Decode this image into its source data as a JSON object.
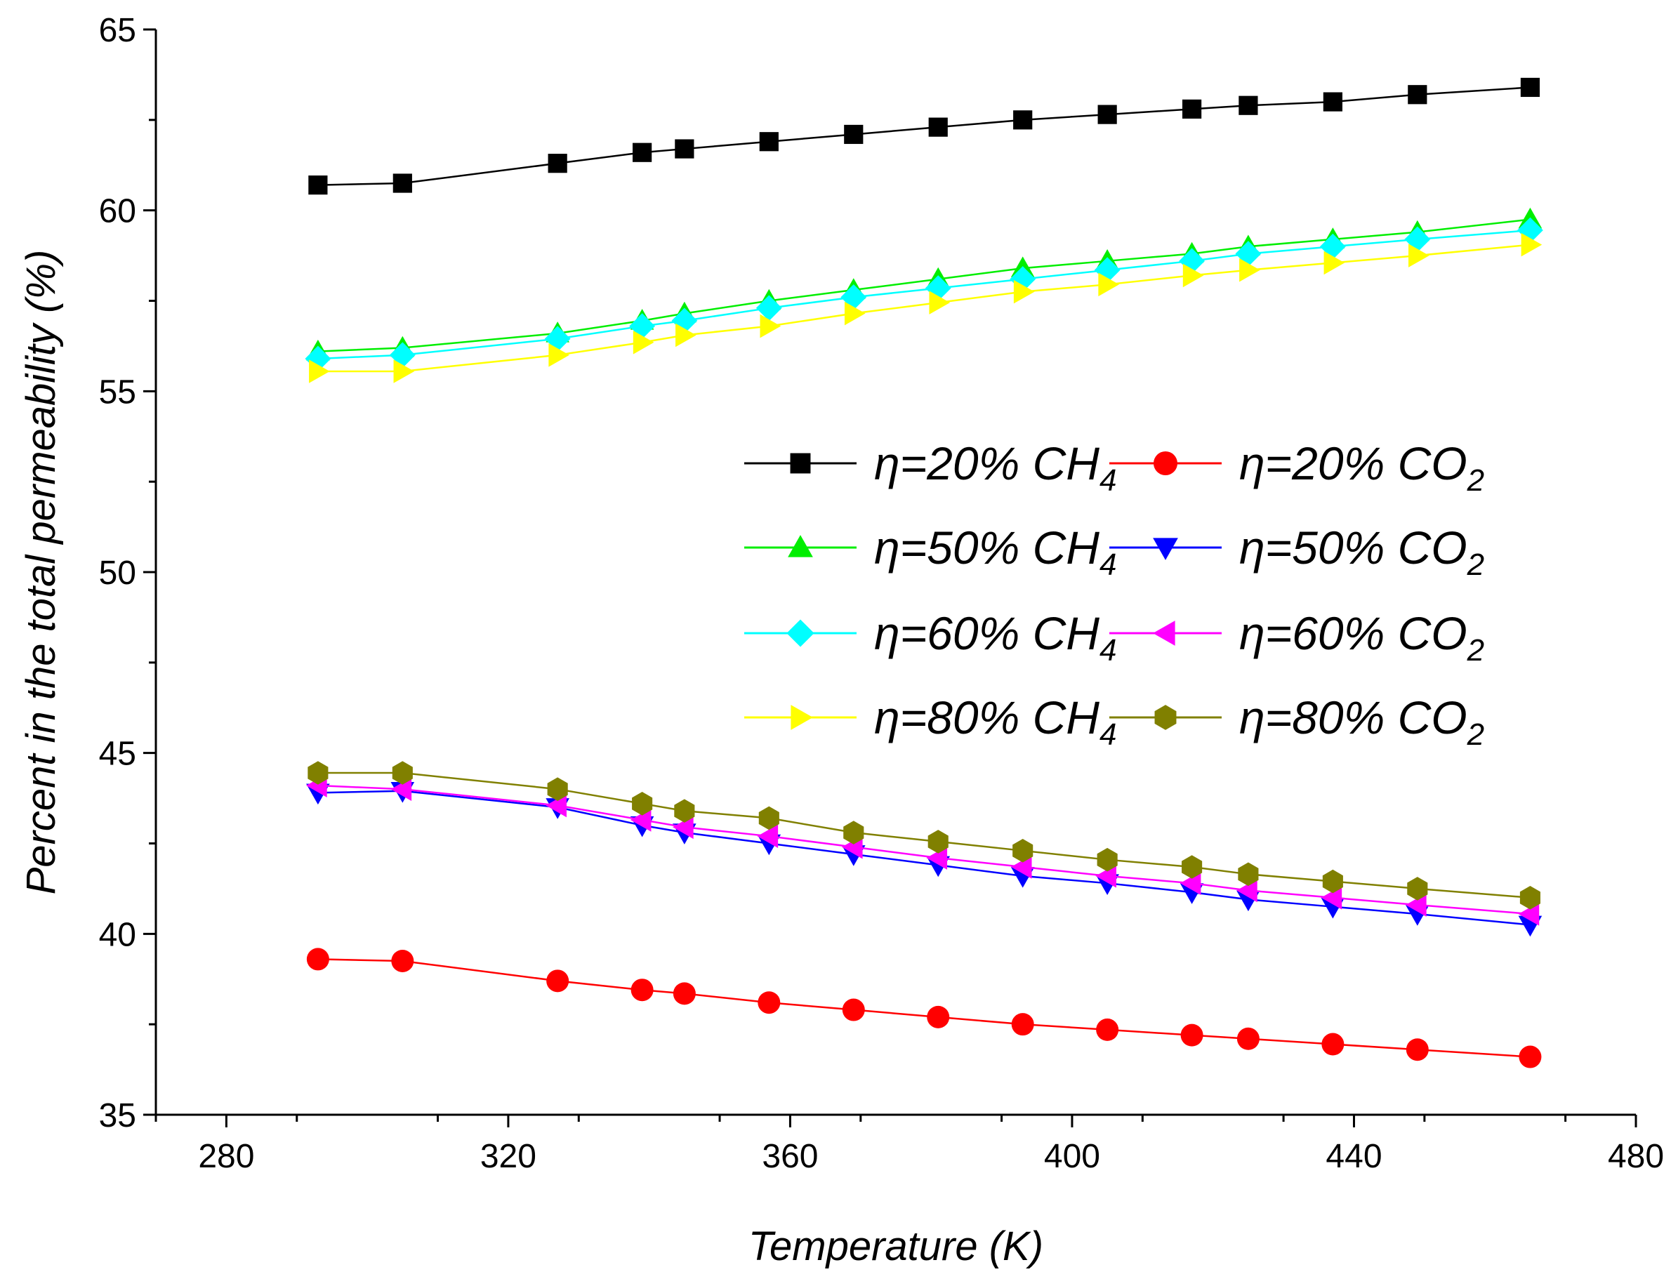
{
  "chart_data": {
    "type": "line",
    "title": "",
    "xlabel": "Temperature (K)",
    "ylabel": "Percent in the total permeability (%)",
    "xlim": [
      270,
      480
    ],
    "ylim": [
      35,
      65
    ],
    "xticks": [
      280,
      320,
      360,
      400,
      440,
      480
    ],
    "yticks": [
      35,
      40,
      45,
      50,
      55,
      60,
      65
    ],
    "xtick_labels": [
      "280",
      "320",
      "360",
      "400",
      "440",
      "480"
    ],
    "ytick_labels": [
      "35",
      "40",
      "45",
      "50",
      "55",
      "60",
      "65"
    ],
    "grid": false,
    "legend_position": "center-right",
    "x": [
      293,
      305,
      327,
      339,
      345,
      357,
      369,
      381,
      393,
      405,
      417,
      425,
      437,
      449,
      465
    ],
    "series": [
      {
        "name": "η=20% CH4",
        "label_main": "η=20% CH",
        "label_sub": "4",
        "color": "#000000",
        "marker": "square",
        "values": [
          60.7,
          60.75,
          61.3,
          61.6,
          61.7,
          61.9,
          62.1,
          62.3,
          62.5,
          62.65,
          62.8,
          62.9,
          63.0,
          63.2,
          63.4
        ]
      },
      {
        "name": "η=20% CO2",
        "label_main": "η=20% CO",
        "label_sub": "2",
        "color": "#ff0000",
        "marker": "circle",
        "values": [
          39.3,
          39.25,
          38.7,
          38.45,
          38.35,
          38.1,
          37.9,
          37.7,
          37.5,
          37.35,
          37.2,
          37.1,
          36.95,
          36.8,
          36.6
        ]
      },
      {
        "name": "η=50% CH4",
        "label_main": "η=50% CH",
        "label_sub": "4",
        "color": "#00ee00",
        "marker": "triangle-up",
        "values": [
          56.1,
          56.2,
          56.6,
          56.95,
          57.15,
          57.5,
          57.8,
          58.1,
          58.4,
          58.6,
          58.8,
          59.0,
          59.2,
          59.4,
          59.75
        ]
      },
      {
        "name": "η=50% CO2",
        "label_main": "η=50% CO",
        "label_sub": "2",
        "color": "#0000ff",
        "marker": "triangle-down",
        "values": [
          43.9,
          43.95,
          43.5,
          43.0,
          42.8,
          42.5,
          42.2,
          41.9,
          41.6,
          41.4,
          41.15,
          40.95,
          40.75,
          40.55,
          40.25
        ]
      },
      {
        "name": "η=60% CH4",
        "label_main": "η=60% CH",
        "label_sub": "4",
        "color": "#00ffff",
        "marker": "diamond",
        "values": [
          55.9,
          56.0,
          56.45,
          56.8,
          56.95,
          57.3,
          57.6,
          57.85,
          58.1,
          58.35,
          58.6,
          58.8,
          59.0,
          59.2,
          59.45
        ]
      },
      {
        "name": "η=60% CO2",
        "label_main": "η=60% CO",
        "label_sub": "2",
        "color": "#ff00ff",
        "marker": "triangle-left",
        "values": [
          44.1,
          44.0,
          43.55,
          43.15,
          42.95,
          42.7,
          42.4,
          42.1,
          41.85,
          41.6,
          41.4,
          41.2,
          41.0,
          40.8,
          40.55
        ]
      },
      {
        "name": "η=80% CH4",
        "label_main": "η=80% CH",
        "label_sub": "4",
        "color": "#ffff00",
        "marker": "triangle-right",
        "values": [
          55.55,
          55.55,
          56.0,
          56.35,
          56.55,
          56.8,
          57.15,
          57.45,
          57.75,
          57.95,
          58.2,
          58.35,
          58.55,
          58.75,
          59.05
        ]
      },
      {
        "name": "η=80% CO2",
        "label_main": "η=80% CO",
        "label_sub": "2",
        "color": "#808000",
        "marker": "hexagon",
        "values": [
          44.45,
          44.45,
          44.0,
          43.6,
          43.4,
          43.2,
          42.8,
          42.55,
          42.3,
          42.05,
          41.85,
          41.65,
          41.45,
          41.25,
          41.0
        ]
      }
    ]
  }
}
